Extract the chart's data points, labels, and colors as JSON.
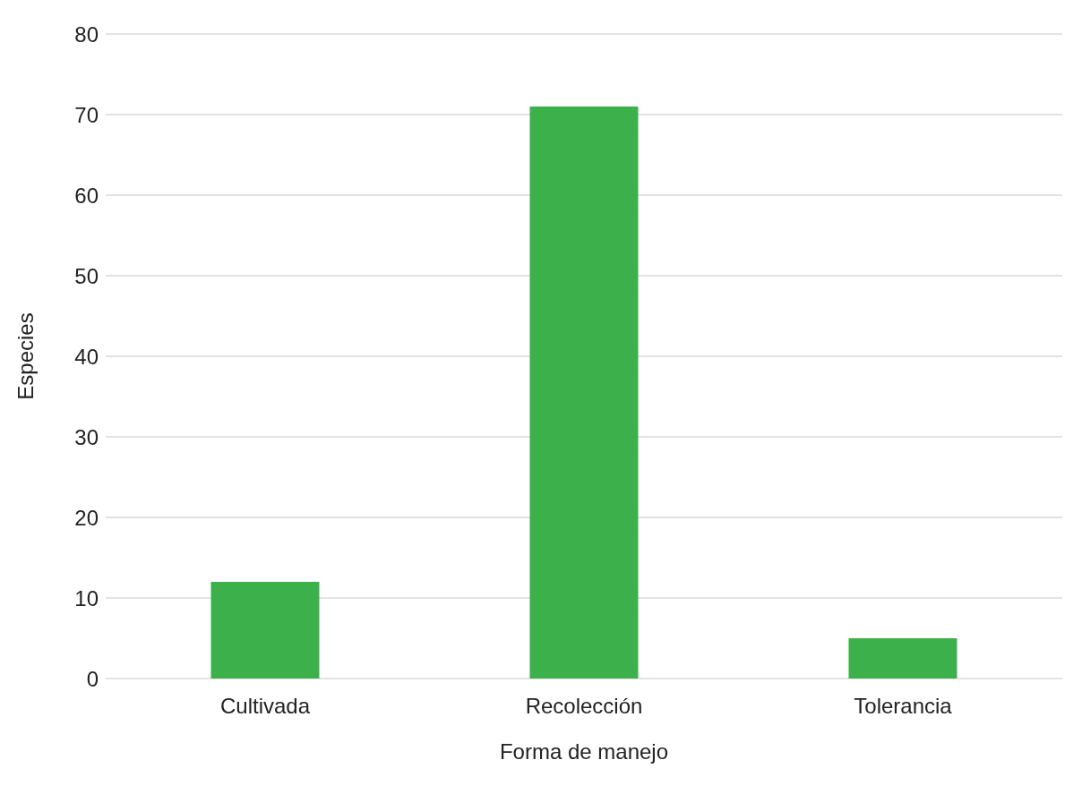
{
  "chart_data": {
    "type": "bar",
    "xlabel": "Forma de manejo",
    "ylabel": "Especies",
    "categories": [
      "Cultivada",
      "Recolección",
      "Tolerancia"
    ],
    "values": [
      12,
      71,
      5
    ],
    "color": "#3cb04a",
    "ylim": [
      0,
      80
    ],
    "yticks": [
      0,
      10,
      20,
      30,
      40,
      50,
      60,
      70,
      80
    ],
    "grid": "y"
  }
}
